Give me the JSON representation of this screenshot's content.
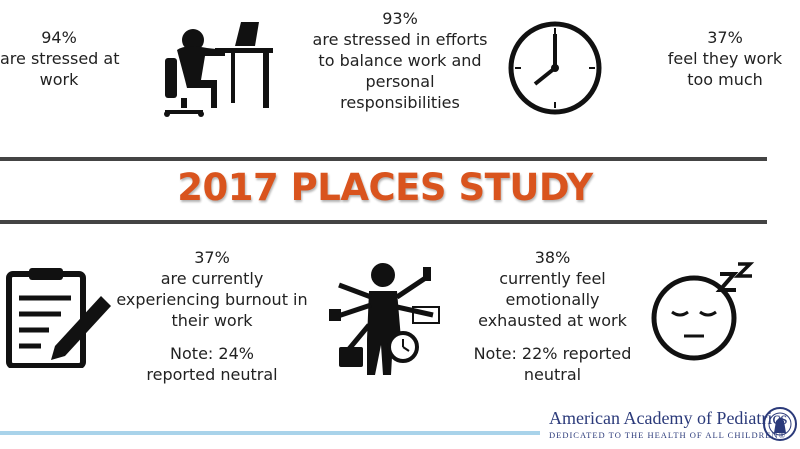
{
  "title": "2017 PLACES STUDY",
  "colors": {
    "title": "#d9541e",
    "rule": "#444444",
    "accent_line": "#a9d3ea",
    "logo": "#2b3a7a"
  },
  "stats_top": [
    {
      "lines": [
        "94%",
        "are stressed at",
        "work"
      ],
      "icon": "stressed-worker-desk-icon"
    },
    {
      "lines": [
        "93%",
        "are stressed in efforts",
        "to balance work and",
        "personal",
        "responsibilities"
      ],
      "icon": "clock-icon"
    },
    {
      "lines": [
        "37%",
        "feel they work",
        "too much"
      ]
    }
  ],
  "stats_bottom": [
    {
      "lines": [
        "37%",
        "are currently",
        "experiencing burnout in",
        "their work"
      ],
      "note": [
        "Note: 24%",
        "reported neutral"
      ],
      "icon": "clipboard-pencil-icon"
    },
    {
      "lines": [
        "38%",
        "currently feel",
        "emotionally",
        "exhausted at work"
      ],
      "note": [
        "Note: 22% reported",
        "neutral"
      ],
      "icon": "sleeping-face-icon"
    }
  ],
  "logo": {
    "name": "American Academy of Pediatrics",
    "tagline": "DEDICATED TO THE HEALTH OF ALL CHILDREN®"
  }
}
